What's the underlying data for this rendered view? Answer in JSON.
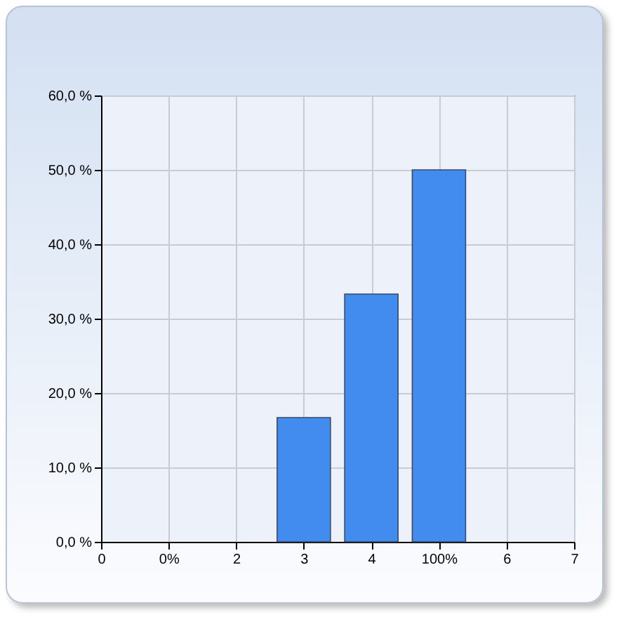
{
  "chart_data": {
    "type": "bar",
    "categories": [
      "0",
      "0%",
      "2",
      "3",
      "4",
      "100%",
      "6",
      "7"
    ],
    "values": [
      null,
      null,
      null,
      16.7,
      33.3,
      50.0,
      null,
      null
    ],
    "color": "#428bef",
    "ylim": [
      0,
      60
    ],
    "yticks": [
      {
        "value": 0,
        "label": "0,0 %"
      },
      {
        "value": 10,
        "label": "10,0 %"
      },
      {
        "value": 20,
        "label": "20,0 %"
      },
      {
        "value": 30,
        "label": "30,0 %"
      },
      {
        "value": 40,
        "label": "40,0 %"
      },
      {
        "value": 50,
        "label": "50,0 %"
      },
      {
        "value": 60,
        "label": "60,0 %"
      }
    ],
    "grid": true
  }
}
